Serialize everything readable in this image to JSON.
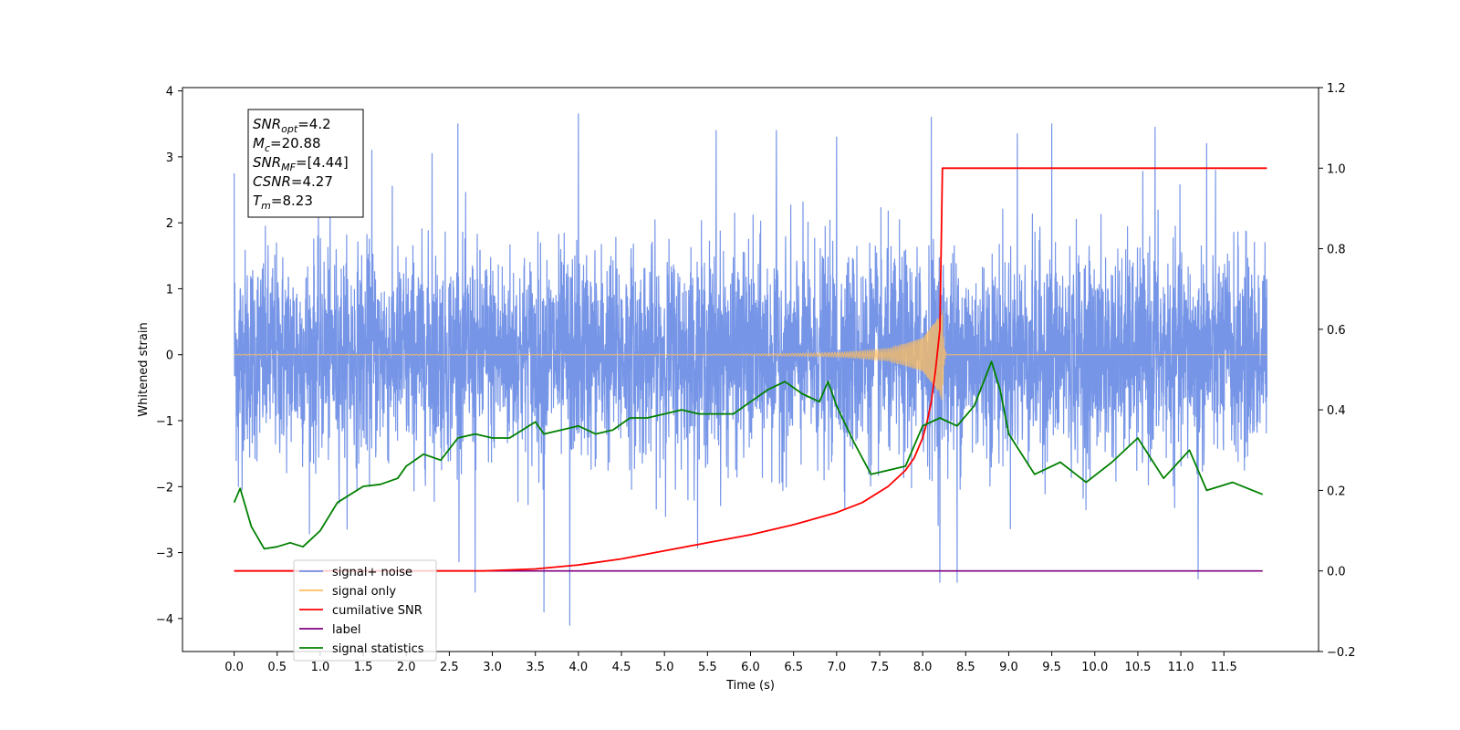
{
  "chart_data": {
    "type": "line",
    "xlabel": "Time (s)",
    "ylabel": "Whitened strain",
    "xlim": [
      -0.6,
      12.6
    ],
    "ylim": [
      -4.5,
      4.05
    ],
    "ylim_right": [
      -0.2,
      1.2
    ],
    "x_ticks": [
      0.0,
      0.5,
      1.0,
      1.5,
      2.0,
      2.5,
      3.0,
      3.5,
      4.0,
      4.5,
      5.0,
      5.5,
      6.0,
      6.5,
      7.0,
      7.5,
      8.0,
      8.5,
      9.0,
      9.5,
      10.0,
      10.5,
      11.0,
      11.5
    ],
    "x_tick_labels": [
      "0.0",
      "0.5",
      "1.0",
      "1.5",
      "2.0",
      "2.5",
      "3.0",
      "3.5",
      "4.0",
      "4.5",
      "5.0",
      "5.5",
      "6.0",
      "6.5",
      "7.0",
      "7.5",
      "8.0",
      "8.5",
      "9.0",
      "9.5",
      "10.0",
      "10.5",
      "11.0",
      "11.5"
    ],
    "y_ticks": [
      4,
      3,
      2,
      1,
      0,
      -1,
      -2,
      -3,
      -4
    ],
    "y_tick_labels": [
      "4",
      "3",
      "2",
      "1",
      "0",
      "−1",
      "−2",
      "−3",
      "−4"
    ],
    "y_right_ticks": [
      1.2,
      1.0,
      0.8,
      0.6,
      0.4,
      0.2,
      0.0,
      -0.2
    ],
    "y_right_tick_labels": [
      "1.2",
      "1.0",
      "0.8",
      "0.6",
      "0.4",
      "0.2",
      "0.0",
      "−0.2"
    ],
    "grid": false,
    "legend_position": "lower-left",
    "annotation": [
      {
        "base": "SNR",
        "sub": "opt",
        "value": "=4.2"
      },
      {
        "base": "M",
        "sub": "c",
        "value": "=20.88"
      },
      {
        "base": "SNR",
        "sub": "MF",
        "value": "=[4.44]"
      },
      {
        "base": "CSNR",
        "sub": "",
        "value": "=4.27"
      },
      {
        "base": "T",
        "sub": "m",
        "value": "=8.23"
      }
    ],
    "series": [
      {
        "name": "signal+ noise",
        "axis": "left",
        "color": "#6f8fe6",
        "description": "whitened noisy strain, roughly ±1.5 with spikes to ±3.6, spans 0–12 s",
        "x_range": [
          0.0,
          12.0
        ],
        "spike_points": [
          {
            "x": 0.0,
            "y": 2.75
          },
          {
            "x": 0.05,
            "y": -2.0
          },
          {
            "x": 1.6,
            "y": 3.1
          },
          {
            "x": 2.3,
            "y": 3.05
          },
          {
            "x": 2.6,
            "y": 3.5
          },
          {
            "x": 2.8,
            "y": -3.6
          },
          {
            "x": 3.6,
            "y": -3.9
          },
          {
            "x": 3.9,
            "y": -4.1
          },
          {
            "x": 4.0,
            "y": 3.65
          },
          {
            "x": 5.6,
            "y": 3.4
          },
          {
            "x": 6.3,
            "y": 3.4
          },
          {
            "x": 7.0,
            "y": 3.3
          },
          {
            "x": 8.1,
            "y": 3.6
          },
          {
            "x": 8.2,
            "y": -3.45
          },
          {
            "x": 8.4,
            "y": -3.45
          },
          {
            "x": 9.1,
            "y": 3.35
          },
          {
            "x": 9.5,
            "y": 3.5
          },
          {
            "x": 10.7,
            "y": 3.45
          },
          {
            "x": 11.3,
            "y": 3.2
          },
          {
            "x": 11.2,
            "y": -3.4
          }
        ]
      },
      {
        "name": "signal only",
        "axis": "left",
        "color": "#ffbf5f",
        "description": "chirp signal growing in amplitude, merging at about 8.23 s",
        "x_range": [
          0.0,
          12.0
        ],
        "chirp_end": 8.23,
        "peak_amplitude": 0.75,
        "envelope": [
          [
            7.0,
            0.03
          ],
          [
            7.6,
            0.09
          ],
          [
            8.0,
            0.25
          ],
          [
            8.2,
            0.6
          ],
          [
            8.23,
            0.75
          ]
        ]
      },
      {
        "name": "cumilative SNR",
        "axis": "right",
        "color": "#ff0000",
        "x": [
          0.0,
          2.9,
          3.5,
          4.0,
          4.5,
          5.0,
          5.5,
          6.0,
          6.5,
          7.0,
          7.3,
          7.6,
          7.8,
          7.9,
          8.0,
          8.05,
          8.1,
          8.15,
          8.2,
          8.23,
          12.0
        ],
        "y": [
          0.0,
          0.0,
          0.005,
          0.015,
          0.03,
          0.05,
          0.07,
          0.09,
          0.115,
          0.145,
          0.17,
          0.21,
          0.25,
          0.28,
          0.33,
          0.37,
          0.42,
          0.5,
          0.6,
          1.0,
          1.0
        ]
      },
      {
        "name": "label",
        "axis": "right",
        "color": "#800080",
        "x": [
          0.0,
          11.95
        ],
        "y": [
          0.0,
          0.0
        ]
      },
      {
        "name": "signal statistics",
        "axis": "right",
        "color": "#008000",
        "x": [
          0.0,
          0.07,
          0.2,
          0.35,
          0.5,
          0.65,
          0.8,
          1.0,
          1.2,
          1.5,
          1.7,
          1.9,
          2.0,
          2.2,
          2.4,
          2.6,
          2.8,
          3.0,
          3.2,
          3.5,
          3.6,
          3.8,
          4.0,
          4.2,
          4.4,
          4.6,
          4.8,
          5.0,
          5.2,
          5.4,
          5.6,
          5.8,
          6.0,
          6.2,
          6.4,
          6.6,
          6.8,
          6.9,
          7.0,
          7.2,
          7.4,
          7.6,
          7.8,
          8.0,
          8.2,
          8.4,
          8.6,
          8.8,
          8.9,
          9.0,
          9.3,
          9.6,
          9.9,
          10.2,
          10.5,
          10.8,
          11.1,
          11.3,
          11.6,
          11.95
        ],
        "y": [
          0.17,
          0.205,
          0.11,
          0.055,
          0.06,
          0.07,
          0.06,
          0.1,
          0.17,
          0.21,
          0.215,
          0.23,
          0.26,
          0.29,
          0.275,
          0.33,
          0.34,
          0.33,
          0.33,
          0.37,
          0.34,
          0.35,
          0.36,
          0.34,
          0.35,
          0.38,
          0.38,
          0.39,
          0.4,
          0.39,
          0.39,
          0.39,
          0.42,
          0.45,
          0.47,
          0.44,
          0.42,
          0.47,
          0.41,
          0.32,
          0.24,
          0.25,
          0.26,
          0.36,
          0.38,
          0.36,
          0.41,
          0.52,
          0.45,
          0.34,
          0.24,
          0.27,
          0.22,
          0.27,
          0.33,
          0.23,
          0.3,
          0.2,
          0.22,
          0.19
        ]
      }
    ]
  }
}
